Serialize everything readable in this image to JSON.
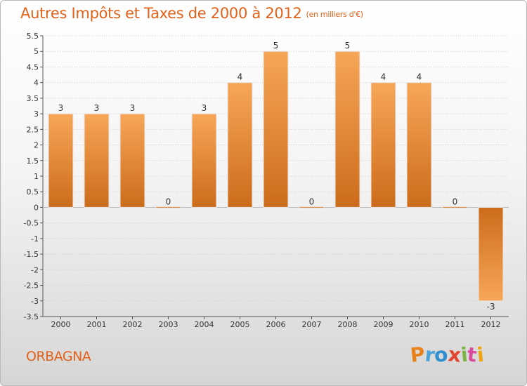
{
  "title": "Autres Impôts et Taxes de 2000 à 2012",
  "subtitle": "(en milliers d'€)",
  "commune": "ORBAGNA",
  "logo": {
    "letters": [
      "P",
      "r",
      "o",
      "x",
      "i",
      "t",
      "i"
    ],
    "colors": [
      "#e8821a",
      "#4ba3d9",
      "#2f8fcf",
      "#e2452c",
      "#7cb342",
      "#d94b9c",
      "#f0a30a"
    ]
  },
  "colors": {
    "bar": "#f0943c",
    "bar_dark": "#cc6e1c",
    "title": "#e2621b",
    "grid": "#cfcfcf"
  },
  "chart_data": {
    "type": "bar",
    "categories": [
      "2000",
      "2001",
      "2002",
      "2003",
      "2004",
      "2005",
      "2006",
      "2007",
      "2008",
      "2009",
      "2010",
      "2011",
      "2012"
    ],
    "values": [
      3,
      3,
      3,
      0,
      3,
      4,
      5,
      0,
      5,
      4,
      4,
      0,
      -3
    ],
    "data_labels": [
      "3",
      "3",
      "3",
      "0",
      "3",
      "4",
      "5",
      "0",
      "5",
      "4",
      "4",
      "0",
      "-3"
    ],
    "yticks": [
      "5.5",
      "5",
      "4.5",
      "4",
      "3.5",
      "3",
      "2.5",
      "2",
      "1.5",
      "1",
      "0.5",
      "0",
      "-0.5",
      "-1",
      "-1.5",
      "-2",
      "-2.5",
      "-3",
      "-3.5"
    ],
    "ylim": [
      -3.5,
      5.5
    ],
    "grid": true
  }
}
